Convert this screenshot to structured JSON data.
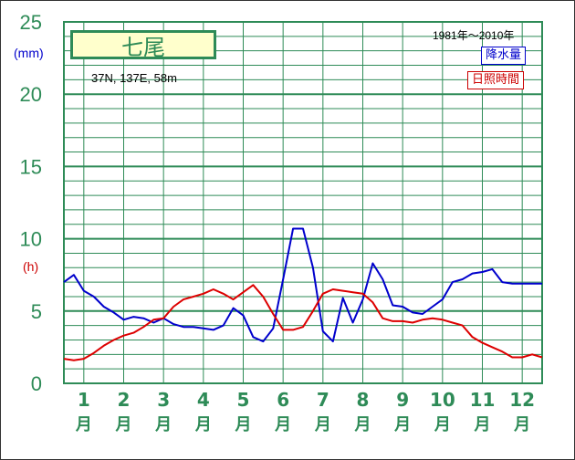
{
  "chart_data": {
    "type": "line",
    "title": "七尾",
    "location": "37N,  137E,  58m",
    "period": "1981年～2010年",
    "y_unit_precip": "(mm)",
    "y_unit_sunshine": "(h)",
    "ylim": [
      0,
      25
    ],
    "y_ticks": [
      "0",
      "5",
      "10",
      "15",
      "20",
      "25"
    ],
    "grid": true,
    "legend_placement": "top-right",
    "categories": [
      {
        "num": "1",
        "unit": "月"
      },
      {
        "num": "2",
        "unit": "月"
      },
      {
        "num": "3",
        "unit": "月"
      },
      {
        "num": "4",
        "unit": "月"
      },
      {
        "num": "5",
        "unit": "月"
      },
      {
        "num": "6",
        "unit": "月"
      },
      {
        "num": "7",
        "unit": "月"
      },
      {
        "num": "8",
        "unit": "月"
      },
      {
        "num": "9",
        "unit": "月"
      },
      {
        "num": "10",
        "unit": "月"
      },
      {
        "num": "11",
        "unit": "月"
      },
      {
        "num": "12",
        "unit": "月"
      }
    ],
    "x_range": [
      0.5,
      12.5
    ],
    "series": [
      {
        "name": "降水量",
        "color": "#0000cc",
        "x": [
          0.5,
          0.75,
          1.0,
          1.25,
          1.5,
          1.75,
          2.0,
          2.25,
          2.5,
          2.75,
          3.0,
          3.25,
          3.5,
          3.75,
          4.0,
          4.25,
          4.5,
          4.75,
          5.0,
          5.25,
          5.5,
          5.75,
          6.0,
          6.25,
          6.5,
          6.75,
          7.0,
          7.25,
          7.5,
          7.75,
          8.0,
          8.25,
          8.5,
          8.75,
          9.0,
          9.25,
          9.5,
          9.75,
          10.0,
          10.25,
          10.5,
          10.75,
          11.0,
          11.25,
          11.5,
          11.75,
          12.0,
          12.25,
          12.5
        ],
        "values": [
          7.0,
          7.5,
          6.4,
          6.0,
          5.3,
          4.9,
          4.4,
          4.6,
          4.5,
          4.2,
          4.5,
          4.1,
          3.9,
          3.9,
          3.8,
          3.7,
          4.0,
          5.2,
          4.7,
          3.2,
          2.9,
          3.8,
          7.2,
          10.7,
          10.7,
          8.0,
          3.6,
          2.9,
          5.9,
          4.2,
          5.8,
          8.3,
          7.2,
          5.4,
          5.3,
          4.9,
          4.8,
          5.3,
          5.8,
          7.0,
          7.2,
          7.6,
          7.7,
          7.9,
          7.0,
          6.9,
          6.9,
          6.9,
          6.9
        ]
      },
      {
        "name": "日照時間",
        "color": "#dd0000",
        "x": [
          0.5,
          0.75,
          1.0,
          1.25,
          1.5,
          1.75,
          2.0,
          2.25,
          2.5,
          2.75,
          3.0,
          3.25,
          3.5,
          3.75,
          4.0,
          4.25,
          4.5,
          4.75,
          5.0,
          5.25,
          5.5,
          5.75,
          6.0,
          6.25,
          6.5,
          6.75,
          7.0,
          7.25,
          7.5,
          7.75,
          8.0,
          8.25,
          8.5,
          8.75,
          9.0,
          9.25,
          9.5,
          9.75,
          10.0,
          10.25,
          10.5,
          10.75,
          11.0,
          11.25,
          11.5,
          11.75,
          12.0,
          12.25,
          12.5
        ],
        "values": [
          1.7,
          1.6,
          1.7,
          2.1,
          2.6,
          3.0,
          3.3,
          3.5,
          3.9,
          4.4,
          4.5,
          5.3,
          5.8,
          6.0,
          6.2,
          6.5,
          6.2,
          5.8,
          6.3,
          6.8,
          6.0,
          4.8,
          3.7,
          3.7,
          3.9,
          5.0,
          6.2,
          6.5,
          6.4,
          6.3,
          6.2,
          5.6,
          4.5,
          4.3,
          4.3,
          4.2,
          4.4,
          4.5,
          4.4,
          4.2,
          4.0,
          3.2,
          2.8,
          2.5,
          2.2,
          1.8,
          1.8,
          2.0,
          1.8
        ]
      }
    ]
  }
}
